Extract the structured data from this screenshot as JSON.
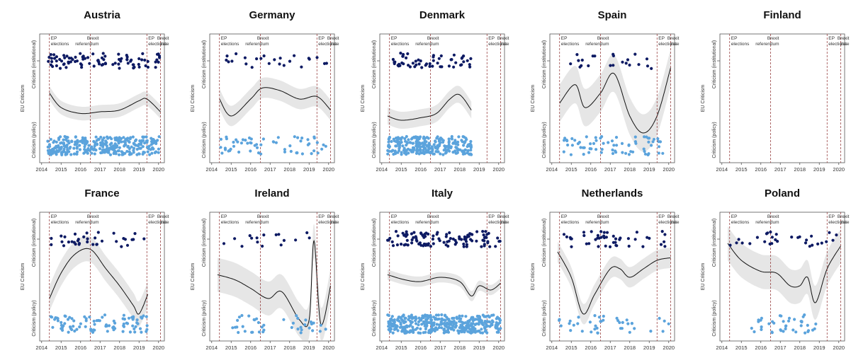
{
  "colors": {
    "institutional": "#0d1a63",
    "policy": "#5ba3dc",
    "smooth": "#111111",
    "band": "#e6e6e6",
    "event_line": "#8b2a2a"
  },
  "labels": {
    "y_top": "Criticism (institutional)",
    "y_mid": "EU Criticism",
    "y_bottom": "Criticism (policy)"
  },
  "events": [
    {
      "x": 2014.4,
      "line1": "EP",
      "line2": "elections"
    },
    {
      "x": 2016.5,
      "line1": "Brexit",
      "line2": "referendum"
    },
    {
      "x": 2019.4,
      "line1": "EP",
      "line2": "elections"
    },
    {
      "x": 2020.1,
      "line1": "Brexit",
      "line2": "date"
    }
  ],
  "chart_data": [
    {
      "type": "scatter",
      "title": "Austria",
      "xlim": [
        2013.9,
        2020.3
      ],
      "xticks": [
        "2014",
        "2015",
        "2016",
        "2017",
        "2018",
        "2019",
        "2020"
      ],
      "institutional": {
        "start": 2014.3,
        "end": 2020.05,
        "count": 90
      },
      "policy": {
        "start": 2014.3,
        "end": 2020.05,
        "count": 320
      },
      "smooth_x": [
        2014.4,
        2015,
        2016,
        2017,
        2018,
        2019,
        2019.4,
        2020.1
      ],
      "smooth_y": [
        0.62,
        0.45,
        0.38,
        0.4,
        0.42,
        0.53,
        0.55,
        0.4
      ],
      "band": 0.08
    },
    {
      "type": "scatter",
      "title": "Germany",
      "xlim": [
        2013.9,
        2020.3
      ],
      "xticks": [
        "2014",
        "2015",
        "2016",
        "2017",
        "2018",
        "2019",
        "2020"
      ],
      "institutional": {
        "start": 2014.4,
        "end": 2020.0,
        "count": 24
      },
      "policy": {
        "start": 2014.3,
        "end": 2020.05,
        "count": 60
      },
      "smooth_x": [
        2014.4,
        2015,
        2016,
        2016.6,
        2017.5,
        2018.5,
        2019.4,
        2020.1
      ],
      "smooth_y": [
        0.55,
        0.35,
        0.55,
        0.68,
        0.65,
        0.55,
        0.58,
        0.42
      ],
      "band": 0.12
    },
    {
      "type": "scatter",
      "title": "Denmark",
      "xlim": [
        2013.9,
        2020.3
      ],
      "xticks": [
        "2014",
        "2015",
        "2016",
        "2017",
        "2018",
        "2019",
        "2020"
      ],
      "institutional": {
        "start": 2014.3,
        "end": 2018.6,
        "count": 55
      },
      "policy": {
        "start": 2014.3,
        "end": 2018.6,
        "count": 260
      },
      "smooth_x": [
        2014.3,
        2015,
        2016,
        2016.8,
        2017.5,
        2018.0,
        2018.6
      ],
      "smooth_y": [
        0.35,
        0.3,
        0.33,
        0.38,
        0.55,
        0.6,
        0.42
      ],
      "band": 0.1
    },
    {
      "type": "scatter",
      "title": "Spain",
      "xlim": [
        2013.9,
        2020.3
      ],
      "xticks": [
        "2014",
        "2015",
        "2016",
        "2017",
        "2018",
        "2019",
        "2020"
      ],
      "institutional": {
        "start": 2014.4,
        "end": 2019.4,
        "count": 22
      },
      "policy": {
        "start": 2014.6,
        "end": 2019.8,
        "count": 70
      },
      "smooth_x": [
        2014.4,
        2015.2,
        2015.7,
        2016.5,
        2017.2,
        2018.0,
        2018.7,
        2019.4,
        2020.1
      ],
      "smooth_y": [
        0.5,
        0.72,
        0.45,
        0.62,
        0.85,
        0.35,
        0.15,
        0.35,
        0.92
      ],
      "band": 0.22
    },
    {
      "type": "scatter",
      "title": "Finland",
      "xlim": [
        2013.9,
        2020.3
      ],
      "xticks": [
        "2014",
        "2015",
        "2016",
        "2017",
        "2018",
        "2019",
        "2020"
      ],
      "institutional": {
        "start": 2014.4,
        "end": 2020.0,
        "count": 0
      },
      "policy": {
        "start": 2014.4,
        "end": 2020.0,
        "count": 0
      },
      "smooth_x": [],
      "smooth_y": [],
      "band": 0
    },
    {
      "type": "scatter",
      "title": "France",
      "xlim": [
        2013.9,
        2020.3
      ],
      "xticks": [
        "2014",
        "2015",
        "2016",
        "2017",
        "2018",
        "2019",
        "2020"
      ],
      "institutional": {
        "start": 2014.3,
        "end": 2019.45,
        "count": 35
      },
      "policy": {
        "start": 2014.3,
        "end": 2019.45,
        "count": 90
      },
      "smooth_x": [
        2014.4,
        2015.0,
        2015.7,
        2016.5,
        2017.3,
        2018.0,
        2018.7,
        2019.0,
        2019.45
      ],
      "smooth_y": [
        0.3,
        0.6,
        0.82,
        0.88,
        0.65,
        0.45,
        0.22,
        0.12,
        0.35
      ],
      "band": 0.15
    },
    {
      "type": "scatter",
      "title": "Ireland",
      "xlim": [
        2013.9,
        2020.3
      ],
      "xticks": [
        "2014",
        "2015",
        "2016",
        "2017",
        "2018",
        "2019",
        "2020"
      ],
      "institutional": {
        "start": 2014.5,
        "end": 2019.3,
        "count": 16
      },
      "policy": {
        "start": 2014.5,
        "end": 2020.1,
        "count": 40
      },
      "smooth_x": [
        2014.3,
        2015.2,
        2016.0,
        2016.9,
        2017.6,
        2018.5,
        2019.0,
        2019.25,
        2019.6,
        2020.1
      ],
      "smooth_y": [
        0.58,
        0.52,
        0.42,
        0.3,
        0.38,
        0.05,
        0.05,
        0.98,
        0.0,
        0.45
      ],
      "band": 0.2
    },
    {
      "type": "scatter",
      "title": "Italy",
      "xlim": [
        2013.9,
        2020.3
      ],
      "xticks": [
        "2014",
        "2015",
        "2016",
        "2017",
        "2018",
        "2019",
        "2020"
      ],
      "institutional": {
        "start": 2014.3,
        "end": 2020.1,
        "count": 110
      },
      "policy": {
        "start": 2014.3,
        "end": 2020.1,
        "count": 380
      },
      "smooth_x": [
        2014.3,
        2015.2,
        2016.0,
        2017.0,
        2018.0,
        2018.6,
        2019.0,
        2019.6,
        2020.1
      ],
      "smooth_y": [
        0.58,
        0.52,
        0.5,
        0.55,
        0.5,
        0.33,
        0.45,
        0.4,
        0.48
      ],
      "band": 0.06
    },
    {
      "type": "scatter",
      "title": "Netherlands",
      "xlim": [
        2013.9,
        2020.3
      ],
      "xticks": [
        "2014",
        "2015",
        "2016",
        "2017",
        "2018",
        "2019",
        "2020"
      ],
      "institutional": {
        "start": 2014.3,
        "end": 2020.0,
        "count": 45
      },
      "policy": {
        "start": 2014.3,
        "end": 2020.0,
        "count": 40
      },
      "smooth_x": [
        2014.3,
        2015.0,
        2015.6,
        2016.2,
        2017.0,
        2017.5,
        2018.0,
        2018.7,
        2019.4,
        2020.1
      ],
      "smooth_y": [
        0.85,
        0.55,
        0.12,
        0.35,
        0.65,
        0.65,
        0.55,
        0.65,
        0.75,
        0.78
      ],
      "band": 0.12
    },
    {
      "type": "scatter",
      "title": "Poland",
      "xlim": [
        2013.9,
        2020.3
      ],
      "xticks": [
        "2014",
        "2015",
        "2016",
        "2017",
        "2018",
        "2019",
        "2020"
      ],
      "institutional": {
        "start": 2014.3,
        "end": 2020.1,
        "count": 30
      },
      "policy": {
        "start": 2015.2,
        "end": 2018.9,
        "count": 40
      },
      "smooth_x": [
        2014.3,
        2015.0,
        2016.0,
        2016.8,
        2017.5,
        2018.0,
        2018.4,
        2018.8,
        2019.4,
        2020.1
      ],
      "smooth_y": [
        0.95,
        0.75,
        0.62,
        0.6,
        0.45,
        0.45,
        0.55,
        0.25,
        0.65,
        0.92
      ],
      "band": 0.2
    }
  ]
}
